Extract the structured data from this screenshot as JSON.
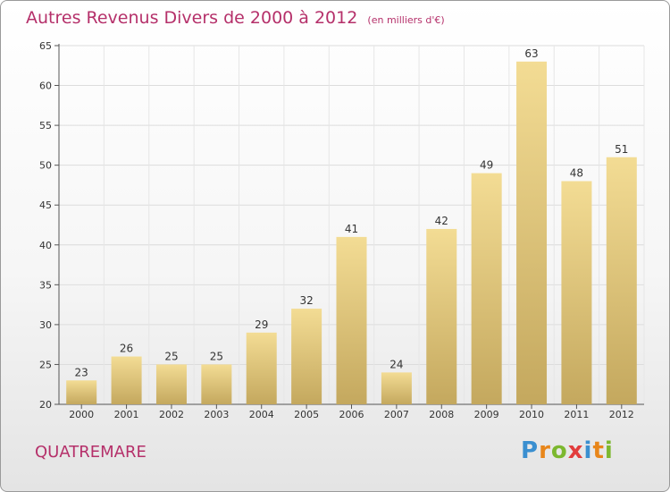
{
  "chart_data": {
    "type": "bar",
    "title": "Autres Revenus Divers de 2000 à 2012",
    "unit_note": "(en milliers d'€)",
    "categories": [
      "2000",
      "2001",
      "2002",
      "2003",
      "2004",
      "2005",
      "2006",
      "2007",
      "2008",
      "2009",
      "2010",
      "2011",
      "2012"
    ],
    "values": [
      23,
      26,
      25,
      25,
      29,
      32,
      41,
      24,
      42,
      49,
      63,
      48,
      51
    ],
    "ylim": [
      20,
      65
    ],
    "yticks": [
      20,
      25,
      30,
      35,
      40,
      45,
      50,
      55,
      60,
      65
    ],
    "grid": true,
    "xlabel": "",
    "ylabel": ""
  },
  "location": "QUATREMARE",
  "logo": {
    "letters": [
      "P",
      "r",
      "o",
      "x",
      "i",
      "t",
      "i"
    ],
    "colors": [
      "#3a8fd0",
      "#e8861a",
      "#7cb82f",
      "#e23c3c",
      "#3a8fd0",
      "#e8861a",
      "#7cb82f"
    ]
  },
  "colors": {
    "title": "#b5306a",
    "bar_top": "#f3dc94",
    "bar_bottom": "#c4a85e",
    "grid": "#dddddd"
  }
}
